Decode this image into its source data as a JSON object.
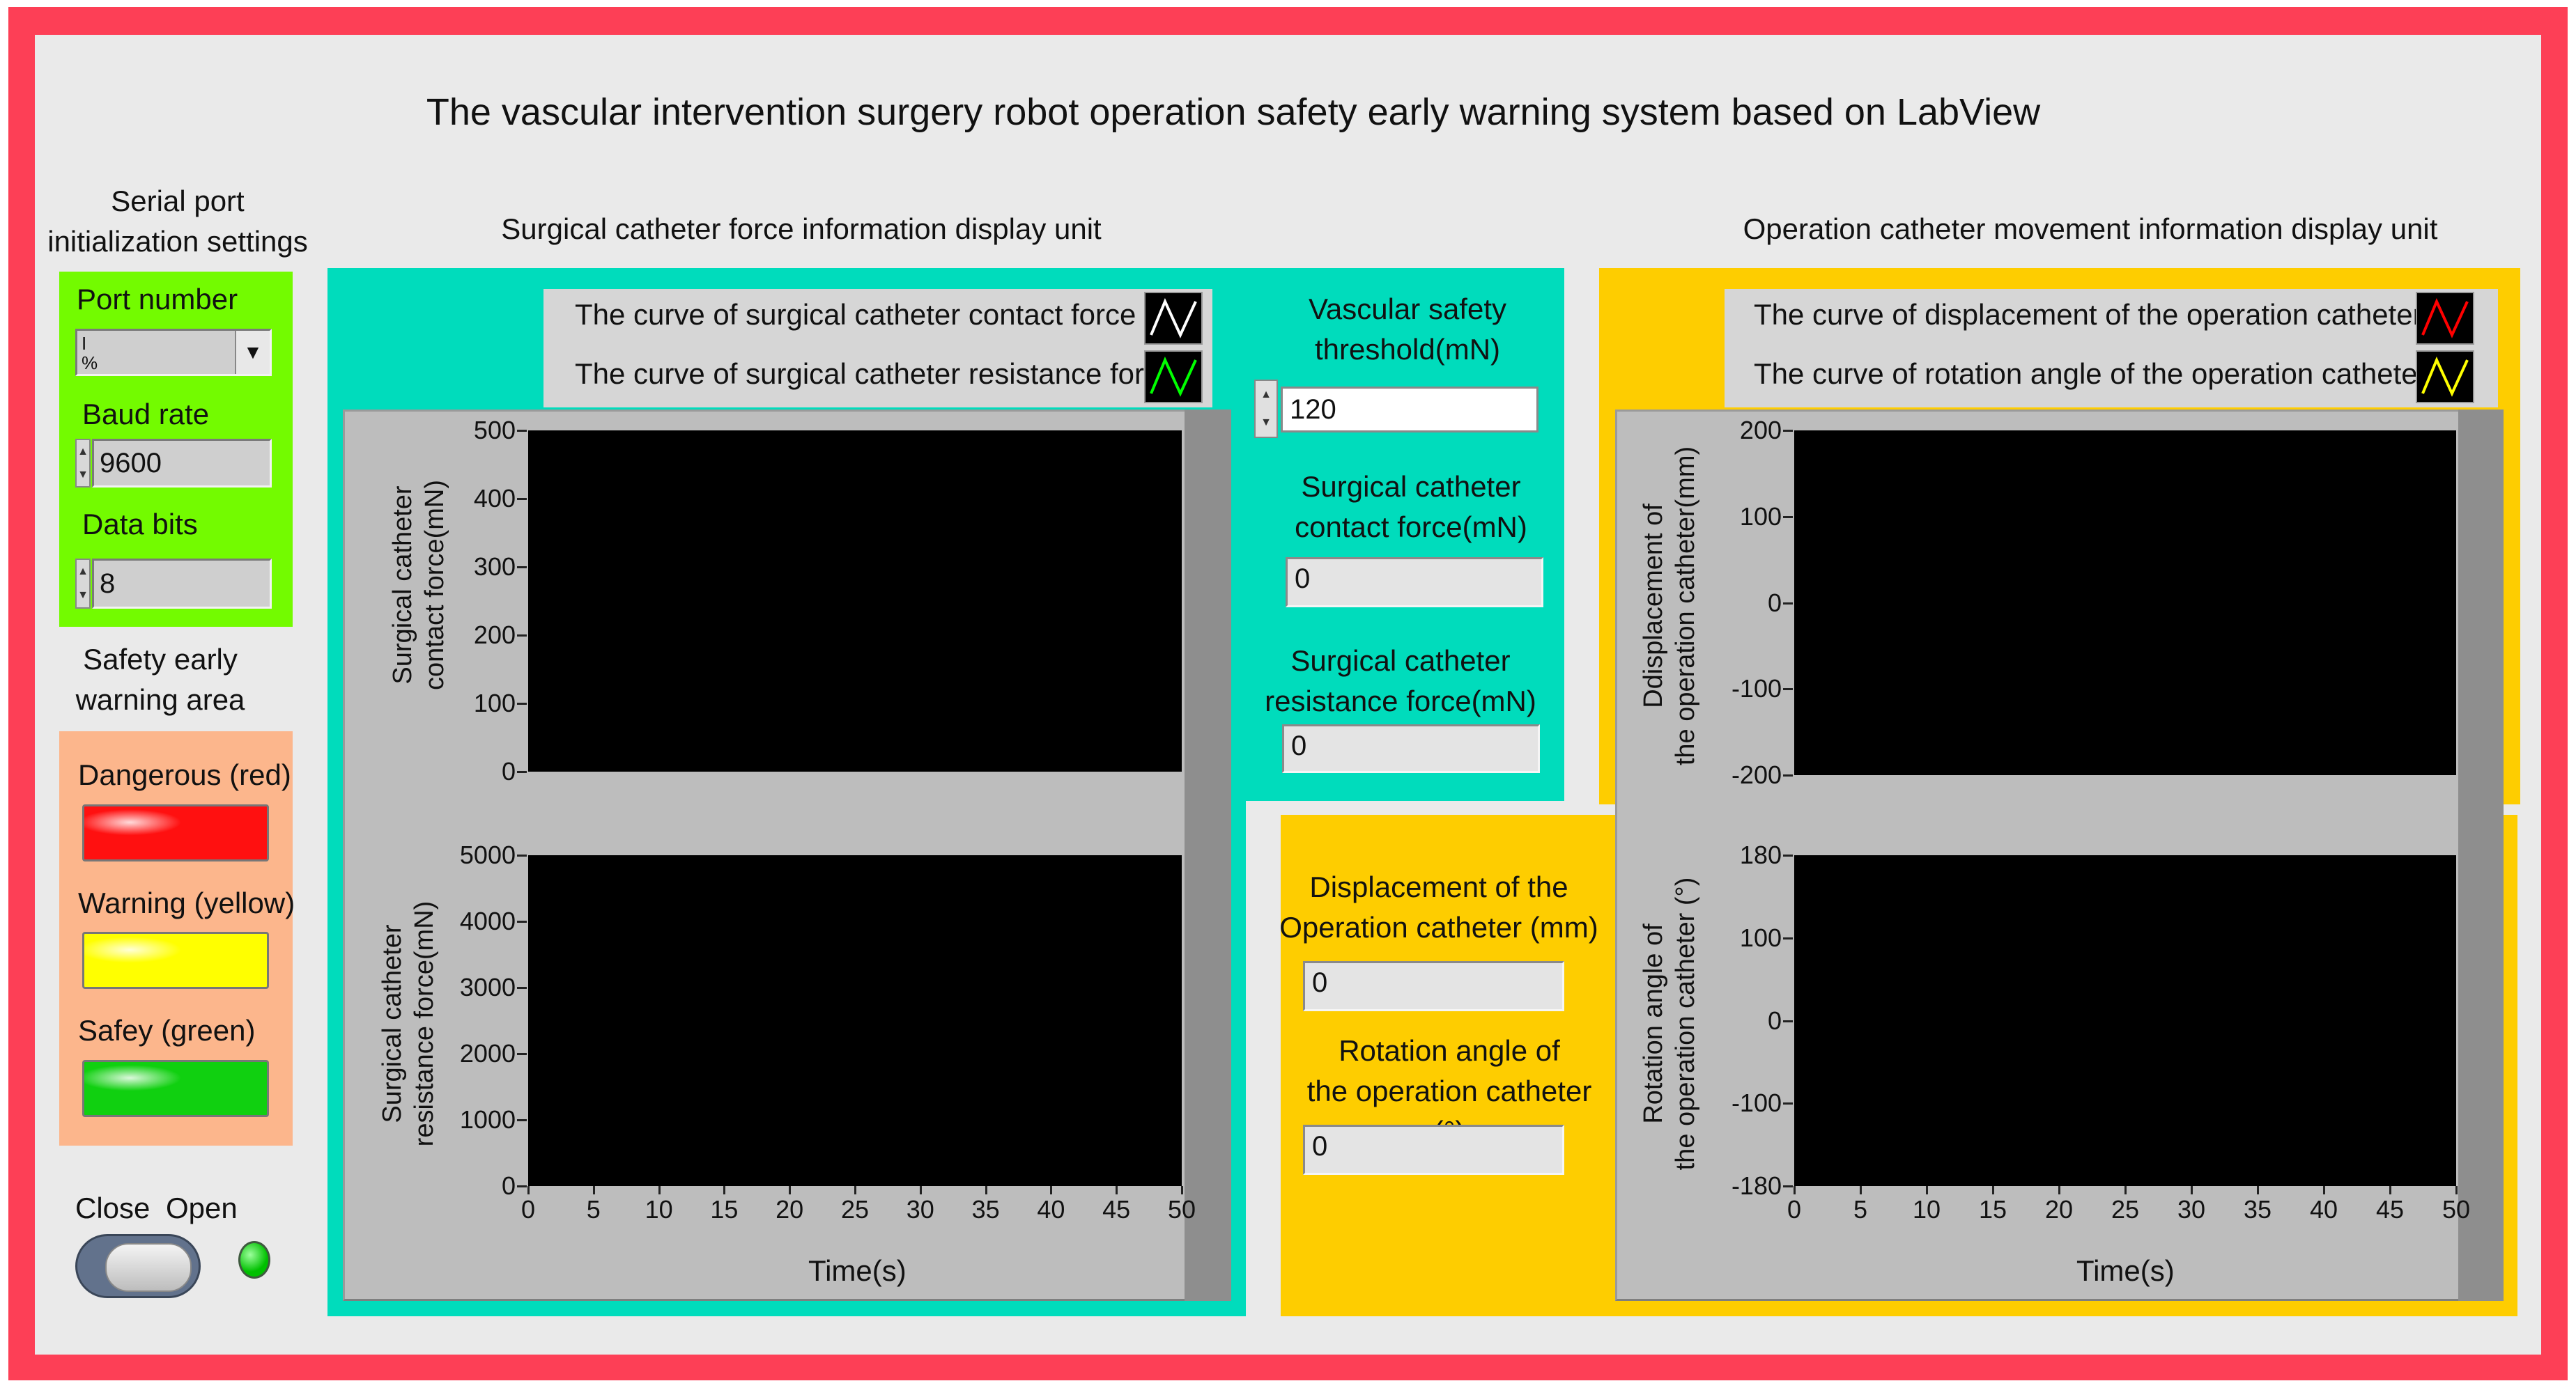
{
  "title": "The vascular intervention surgery robot operation safety early warning system based on LabView",
  "serial": {
    "heading_line1": "Serial port",
    "heading_line2": "initialization settings",
    "port_label": "Port number",
    "port_value": "",
    "baud_label": "Baud rate",
    "baud_value": "9600",
    "bits_label": "Data bits",
    "bits_value": "8"
  },
  "safety": {
    "heading_line1": "Safety early",
    "heading_line2": "warning area",
    "dangerous_label": "Dangerous (red)",
    "warning_label": "Warning (yellow)",
    "safe_label": "Safey (green)",
    "dangerous_color": "#ff1010",
    "warning_color": "#ffff00",
    "safe_color": "#10d010"
  },
  "switch": {
    "close_label": "Close",
    "open_label": "Open",
    "led_color": "#00c000"
  },
  "force_unit": {
    "heading": "Surgical catheter force information display unit",
    "legend": [
      {
        "label": "The curve of surgical catheter contact force",
        "color": "#ffffff"
      },
      {
        "label": "The curve of surgical catheter resistance force",
        "color": "#00ff00"
      }
    ],
    "threshold_label_line1": "Vascular safety",
    "threshold_label_line2": "threshold(mN)",
    "threshold_value": "120",
    "contact_label_line1": "Surgical catheter",
    "contact_label_line2": "contact force(mN)",
    "contact_value": "0",
    "resistance_label_line1": "Surgical catheter",
    "resistance_label_line2": "resistance force(mN)",
    "resistance_value": "0"
  },
  "movement_unit": {
    "heading": "Operation catheter movement information display unit",
    "legend": [
      {
        "label": "The curve of displacement of the operation catheter",
        "color": "#ff0000"
      },
      {
        "label": "The curve of rotation angle of the operation catheter",
        "color": "#ffff00"
      }
    ],
    "displacement_label_line1": "Displacement of the",
    "displacement_label_line2": "Operation catheter (mm)",
    "displacement_value": "0",
    "rotation_label_line1": "Rotation angle of",
    "rotation_label_line2": "the operation catheter (°)",
    "rotation_value": "0"
  },
  "chart_data": [
    {
      "type": "line",
      "title": "",
      "ylabel": "Surgical catheter contact force(mN)",
      "xlabel": "",
      "ylim": [
        0,
        500
      ],
      "yticks": [
        "500",
        "400",
        "300",
        "200",
        "100",
        "0"
      ],
      "series": []
    },
    {
      "type": "line",
      "title": "",
      "ylabel": "Surgical catheter resistance force(mN)",
      "xlabel": "Time(s)",
      "ylim": [
        0,
        5000
      ],
      "yticks": [
        "5000",
        "4000",
        "3000",
        "2000",
        "1000",
        "0"
      ],
      "xlim": [
        0,
        50
      ],
      "xticks": [
        "0",
        "5",
        "10",
        "15",
        "20",
        "25",
        "30",
        "35",
        "40",
        "45",
        "50"
      ],
      "series": []
    },
    {
      "type": "line",
      "title": "",
      "ylabel": "Ddisplacement of the operation catheter(mm)",
      "xlabel": "",
      "ylim": [
        -200,
        200
      ],
      "yticks": [
        "200",
        "100",
        "0",
        "-100",
        "-200"
      ],
      "series": []
    },
    {
      "type": "line",
      "title": "",
      "ylabel": "Rotation angle of the operation catheter (°)",
      "xlabel": "Time(s)",
      "ylim": [
        -180,
        180
      ],
      "yticks": [
        "180",
        "100",
        "0",
        "-100",
        "-180"
      ],
      "xlim": [
        0,
        50
      ],
      "xticks": [
        "0",
        "5",
        "10",
        "15",
        "20",
        "25",
        "30",
        "35",
        "40",
        "45",
        "50"
      ],
      "series": []
    }
  ],
  "charts_ylabels": {
    "c0_line1": "Surgical catheter",
    "c0_line2": "contact force(mN)",
    "c1_line1": "Surgical catheter",
    "c1_line2": "resistance force(mN)",
    "c2_line1": "Ddisplacement of",
    "c2_line2": "the operation catheter(mm)",
    "c3_line1": "Rotation angle of",
    "c3_line2": "the operation catheter (°)"
  }
}
